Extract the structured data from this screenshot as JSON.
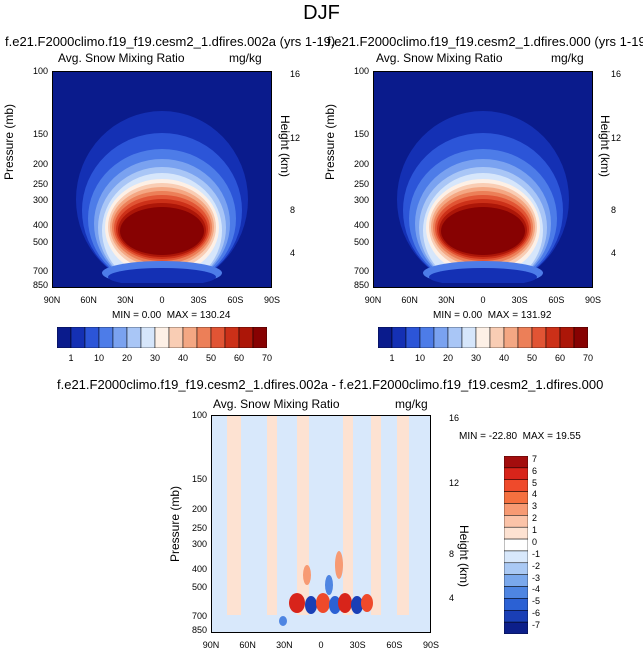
{
  "figure": {
    "title": "DJF",
    "variable_label": "Avg. Snow Mixing Ratio",
    "units": "mg/kg"
  },
  "chart_data": [
    {
      "type": "heatmap",
      "title": "f.e21.F2000climo.f19_f19.cesm2_1.dfires.002a (yrs 1-19)",
      "subtitle": "Avg. Snow Mixing Ratio",
      "units": "mg/kg",
      "ylabel": "Pressure (mb)",
      "y2label": "Height (km)",
      "x_ticks": [
        "90N",
        "60N",
        "30N",
        "0",
        "30S",
        "60S",
        "90S"
      ],
      "y_ticks": [
        "100",
        "150",
        "200",
        "250",
        "300",
        "400",
        "500",
        "700",
        "850"
      ],
      "y2_ticks": [
        "4",
        "8",
        "12",
        "16"
      ],
      "min_label": "MIN =",
      "min": "0.00",
      "max_label": "MAX =",
      "max": "130.24",
      "colorbar_labels": [
        "1",
        "10",
        "20",
        "30",
        "40",
        "50",
        "60",
        "70"
      ],
      "colorbar_colors": [
        "#0a1b8c",
        "#1430b4",
        "#2c55d8",
        "#4d7ce8",
        "#7aa2f0",
        "#a9c6f6",
        "#d6e6fb",
        "#fdf0e6",
        "#f9cdb4",
        "#f4a783",
        "#ec7f58",
        "#e15434",
        "#cc3018",
        "#ac1608",
        "#870202"
      ]
    },
    {
      "type": "heatmap",
      "title": "f.e21.F2000climo.f19_f19.cesm2_1.dfires.000 (yrs 1-19)",
      "subtitle": "Avg. Snow Mixing Ratio",
      "units": "mg/kg",
      "ylabel": "Pressure (mb)",
      "y2label": "Height (km)",
      "x_ticks": [
        "90N",
        "60N",
        "30N",
        "0",
        "30S",
        "60S",
        "90S"
      ],
      "y_ticks": [
        "100",
        "150",
        "200",
        "250",
        "300",
        "400",
        "500",
        "700",
        "850"
      ],
      "y2_ticks": [
        "4",
        "8",
        "12",
        "16"
      ],
      "min_label": "MIN =",
      "min": "0.00",
      "max_label": "MAX =",
      "max": "131.92",
      "colorbar_labels": [
        "1",
        "10",
        "20",
        "30",
        "40",
        "50",
        "60",
        "70"
      ],
      "colorbar_colors": [
        "#0a1b8c",
        "#1430b4",
        "#2c55d8",
        "#4d7ce8",
        "#7aa2f0",
        "#a9c6f6",
        "#d6e6fb",
        "#fdf0e6",
        "#f9cdb4",
        "#f4a783",
        "#ec7f58",
        "#e15434",
        "#cc3018",
        "#ac1608",
        "#870202"
      ]
    },
    {
      "type": "heatmap",
      "title": "f.e21.F2000climo.f19_f19.cesm2_1.dfires.002a - f.e21.F2000climo.f19_f19.cesm2_1.dfires.000",
      "subtitle": "Avg. Snow Mixing Ratio",
      "units": "mg/kg",
      "ylabel": "Pressure (mb)",
      "y2label": "Height (km)",
      "x_ticks": [
        "90N",
        "60N",
        "30N",
        "0",
        "30S",
        "60S",
        "90S"
      ],
      "y_ticks": [
        "100",
        "150",
        "200",
        "250",
        "300",
        "400",
        "500",
        "700",
        "850"
      ],
      "y2_ticks": [
        "4",
        "8",
        "12",
        "16"
      ],
      "min_label": "MIN =",
      "min": "-22.80",
      "max_label": "MAX =",
      "max": "19.55",
      "colorbar_labels": [
        "7",
        "6",
        "5",
        "4",
        "3",
        "2",
        "1",
        "0",
        "-1",
        "-2",
        "-3",
        "-4",
        "-5",
        "-6",
        "-7"
      ],
      "colorbar_colors": [
        "#a30d0d",
        "#d8241a",
        "#ef4a2b",
        "#f5703f",
        "#f79a73",
        "#fbc3a8",
        "#fde2d2",
        "#ffffff",
        "#d8e8fb",
        "#aac9f4",
        "#7aa8ec",
        "#4e85e2",
        "#2b61d4",
        "#1a3fb6",
        "#0c1f8a"
      ]
    }
  ]
}
